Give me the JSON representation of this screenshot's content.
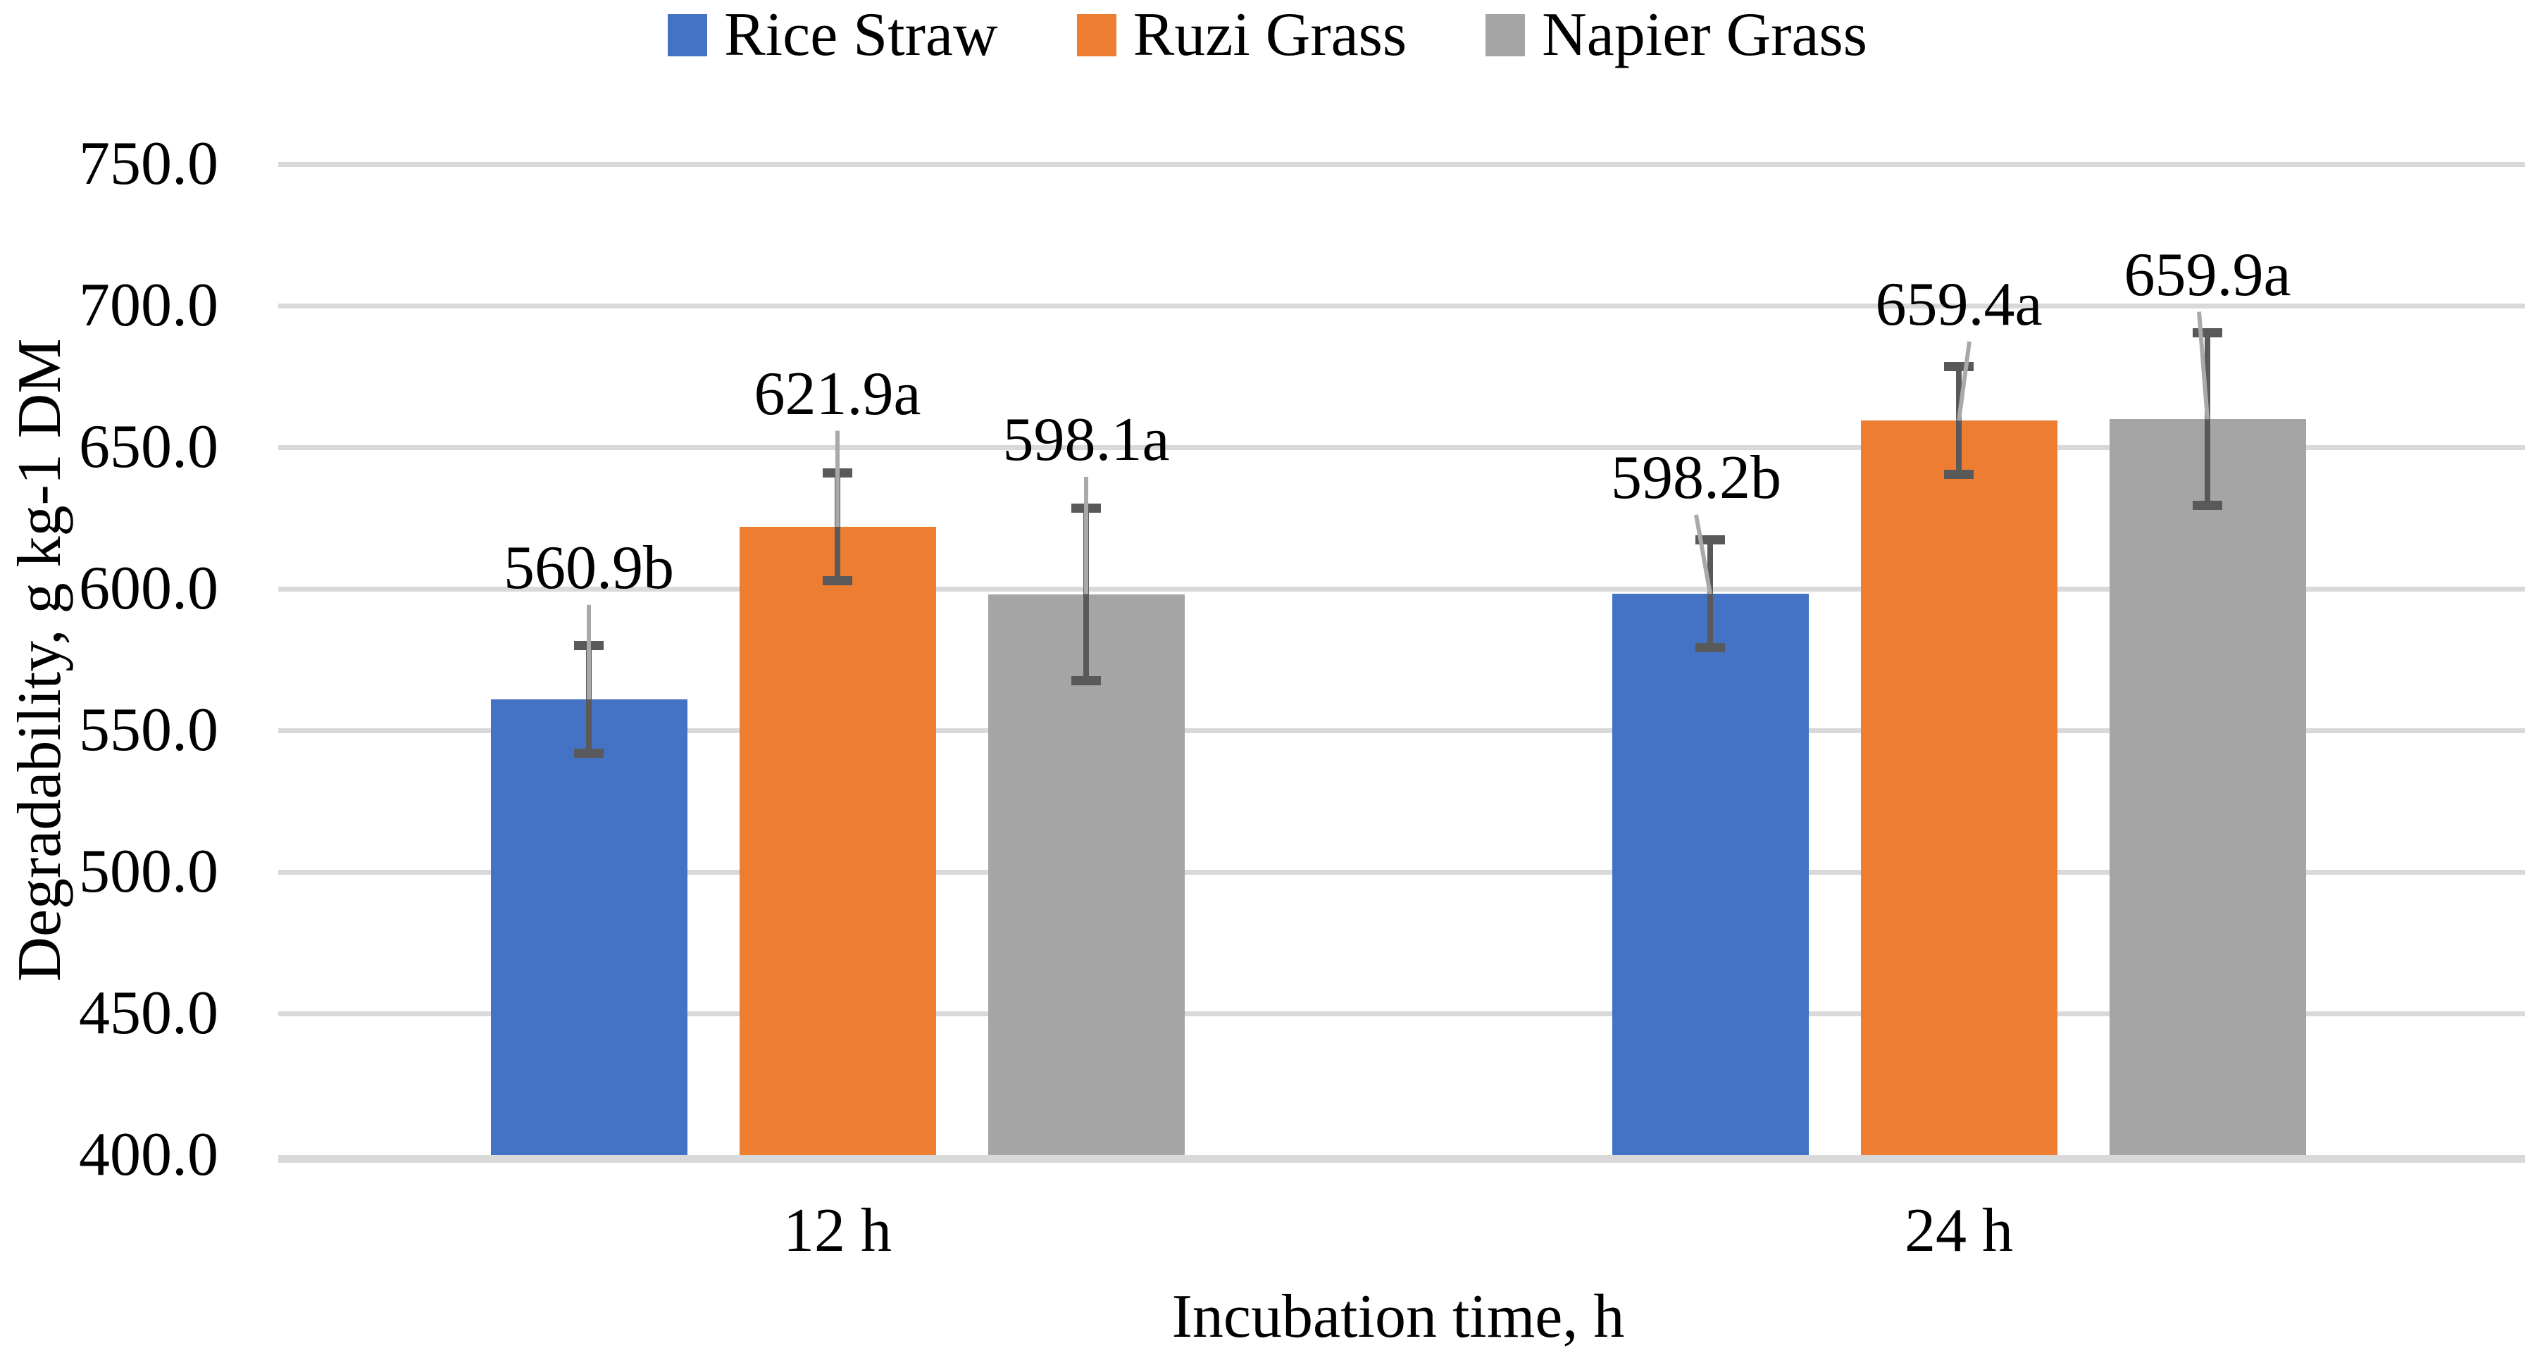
{
  "figure": {
    "background": "#ffffff",
    "text_color": "#000000"
  },
  "legend": {
    "position": "top",
    "items": [
      {
        "label": "Rice Straw",
        "color": "#4472C4"
      },
      {
        "label": "Ruzi Grass",
        "color": "#ED7D31"
      },
      {
        "label": "Napier Grass",
        "color": "#A5A5A5"
      }
    ]
  },
  "chart_data": {
    "type": "bar",
    "title": "",
    "categories": [
      "12 h",
      "24 h"
    ],
    "series": [
      {
        "name": "Rice Straw",
        "color": "#4472C4",
        "values": [
          560.9,
          598.2
        ],
        "errors": [
          19.0,
          19.0
        ],
        "point_labels": [
          "560.9b",
          "598.2b"
        ]
      },
      {
        "name": "Ruzi Grass",
        "color": "#ED7D31",
        "values": [
          621.9,
          659.4
        ],
        "errors": [
          19.0,
          19.0
        ],
        "point_labels": [
          "621.9a",
          "659.4a"
        ]
      },
      {
        "name": "Napier Grass",
        "color": "#A5A5A5",
        "values": [
          598.1,
          659.9
        ],
        "errors": [
          30.5,
          30.5
        ],
        "point_labels": [
          "598.1a",
          "659.9a"
        ]
      }
    ],
    "xlabel": "Incubation time, h",
    "ylabel": "Degradability, g kg-1 DM",
    "ylim": [
      400,
      750
    ],
    "ytick_step": 50,
    "ytick_decimals": 1,
    "grid": "horizontal",
    "legend_position": "top",
    "error_bar_color": "#595959",
    "leader_line_color": "#A9A9A9",
    "gridline_color": "#D9D9D9"
  }
}
